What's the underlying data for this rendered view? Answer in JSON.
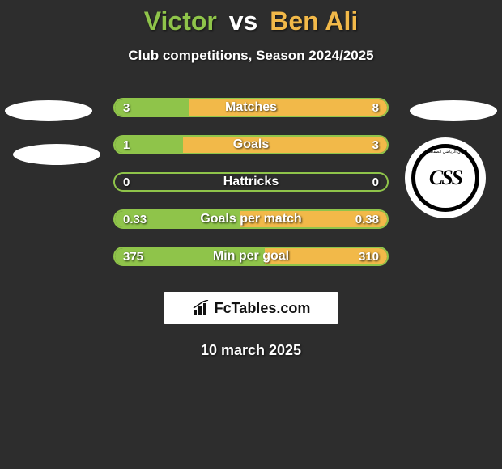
{
  "title": {
    "left_name": "Victor",
    "vs": "vs",
    "right_name": "Ben Ali",
    "left_color": "#8fc44a",
    "right_color": "#f2b949"
  },
  "subtitle": "Club competitions, Season 2024/2025",
  "colors": {
    "left_fill": "#8fc44a",
    "right_fill": "#f2b949",
    "left_border": "#8fc44a",
    "text": "#ffffff",
    "background": "#2d2d2d"
  },
  "logo": {
    "right_text": "CSS",
    "right_arc": "النادي الرياضي الصفاقسي"
  },
  "rows": [
    {
      "label": "Matches",
      "left": "3",
      "right": "8",
      "left_pct": 27,
      "right_pct": 73
    },
    {
      "label": "Goals",
      "left": "1",
      "right": "3",
      "left_pct": 25,
      "right_pct": 75
    },
    {
      "label": "Hattricks",
      "left": "0",
      "right": "0",
      "left_pct": 0,
      "right_pct": 0
    },
    {
      "label": "Goals per match",
      "left": "0.33",
      "right": "0.38",
      "left_pct": 46,
      "right_pct": 54
    },
    {
      "label": "Min per goal",
      "left": "375",
      "right": "310",
      "left_pct": 55,
      "right_pct": 45
    }
  ],
  "brand": "FcTables.com",
  "date": "10 march 2025"
}
